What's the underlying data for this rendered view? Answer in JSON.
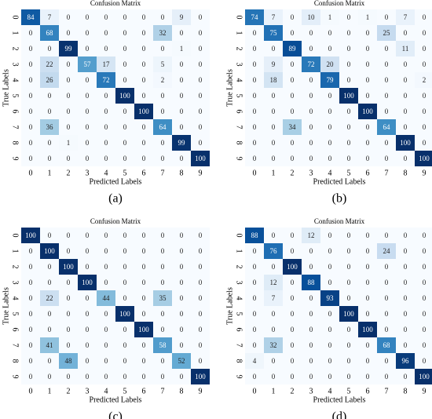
{
  "chart_data": [
    {
      "type": "heatmap",
      "title": "Confusion Matrix",
      "x_label": "Predicted Labels",
      "y_label": "True Labels",
      "caption": "(a)",
      "colormap": "Blues",
      "x_categories": [
        "0",
        "1",
        "2",
        "3",
        "4",
        "5",
        "6",
        "7",
        "8",
        "9"
      ],
      "y_categories": [
        "0",
        "1",
        "2",
        "3",
        "4",
        "5",
        "6",
        "7",
        "8",
        "9"
      ],
      "values": [
        [
          84,
          7,
          0,
          0,
          0,
          0,
          0,
          0,
          9,
          0
        ],
        [
          0,
          68,
          0,
          0,
          0,
          0,
          0,
          32,
          0,
          0
        ],
        [
          0,
          0,
          99,
          0,
          0,
          0,
          0,
          0,
          1,
          0
        ],
        [
          0,
          22,
          0,
          57,
          17,
          0,
          0,
          5,
          0,
          0
        ],
        [
          0,
          26,
          0,
          0,
          72,
          0,
          0,
          2,
          0,
          0
        ],
        [
          0,
          0,
          0,
          0,
          0,
          100,
          0,
          0,
          0,
          0
        ],
        [
          0,
          0,
          0,
          0,
          0,
          0,
          100,
          0,
          0,
          0
        ],
        [
          0,
          36,
          0,
          0,
          0,
          0,
          0,
          64,
          0,
          0
        ],
        [
          0,
          0,
          1,
          0,
          0,
          0,
          0,
          0,
          99,
          0
        ],
        [
          0,
          0,
          0,
          0,
          0,
          0,
          0,
          0,
          0,
          100
        ]
      ]
    },
    {
      "type": "heatmap",
      "title": "Confusion Matrix",
      "x_label": "Predicted Labels",
      "y_label": "True Labels",
      "caption": "(b)",
      "colormap": "Blues",
      "x_categories": [
        "0",
        "1",
        "2",
        "3",
        "4",
        "5",
        "6",
        "7",
        "8",
        "9"
      ],
      "y_categories": [
        "0",
        "1",
        "2",
        "3",
        "4",
        "5",
        "6",
        "7",
        "8",
        "9"
      ],
      "values": [
        [
          74,
          7,
          0,
          10,
          1,
          0,
          1,
          0,
          7,
          0
        ],
        [
          0,
          75,
          0,
          0,
          0,
          0,
          0,
          25,
          0,
          0
        ],
        [
          0,
          0,
          89,
          0,
          0,
          0,
          0,
          0,
          11,
          0
        ],
        [
          0,
          9,
          0,
          72,
          20,
          0,
          0,
          0,
          0,
          0
        ],
        [
          0,
          18,
          0,
          0,
          79,
          0,
          0,
          0,
          0,
          2
        ],
        [
          0,
          0,
          0,
          0,
          0,
          100,
          0,
          0,
          0,
          0
        ],
        [
          0,
          0,
          0,
          0,
          0,
          0,
          100,
          0,
          0,
          0
        ],
        [
          0,
          0,
          34,
          0,
          0,
          0,
          0,
          64,
          0,
          0
        ],
        [
          0,
          0,
          0,
          0,
          0,
          0,
          0,
          0,
          100,
          0
        ],
        [
          0,
          0,
          0,
          0,
          0,
          0,
          0,
          0,
          0,
          100
        ]
      ]
    },
    {
      "type": "heatmap",
      "title": "Confusion Matrix",
      "x_label": "Predicted Labels",
      "y_label": "True Labels",
      "caption": "(c)",
      "colormap": "Blues",
      "x_categories": [
        "0",
        "1",
        "2",
        "3",
        "4",
        "5",
        "6",
        "7",
        "8",
        "9"
      ],
      "y_categories": [
        "0",
        "1",
        "2",
        "3",
        "4",
        "5",
        "6",
        "7",
        "8",
        "9"
      ],
      "values": [
        [
          100,
          0,
          0,
          0,
          0,
          0,
          0,
          0,
          0,
          0
        ],
        [
          0,
          100,
          0,
          0,
          0,
          0,
          0,
          0,
          0,
          0
        ],
        [
          0,
          0,
          100,
          0,
          0,
          0,
          0,
          0,
          0,
          0
        ],
        [
          0,
          0,
          0,
          100,
          0,
          0,
          0,
          0,
          0,
          0
        ],
        [
          0,
          22,
          0,
          0,
          44,
          0,
          0,
          35,
          0,
          0
        ],
        [
          0,
          0,
          0,
          0,
          0,
          100,
          0,
          0,
          0,
          0
        ],
        [
          0,
          0,
          0,
          0,
          0,
          0,
          100,
          0,
          0,
          0
        ],
        [
          0,
          41,
          0,
          0,
          0,
          0,
          0,
          58,
          0,
          0
        ],
        [
          0,
          0,
          48,
          0,
          0,
          0,
          0,
          0,
          52,
          0
        ],
        [
          0,
          0,
          0,
          0,
          0,
          0,
          0,
          0,
          0,
          100
        ]
      ]
    },
    {
      "type": "heatmap",
      "title": "Confusion Matrix",
      "x_label": "Predicted Labels",
      "y_label": "True Labels",
      "caption": "(d)",
      "colormap": "Blues",
      "x_categories": [
        "0",
        "1",
        "2",
        "3",
        "4",
        "5",
        "6",
        "7",
        "8",
        "9"
      ],
      "y_categories": [
        "0",
        "1",
        "2",
        "3",
        "4",
        "5",
        "6",
        "7",
        "8",
        "9"
      ],
      "values": [
        [
          88,
          0,
          0,
          12,
          0,
          0,
          0,
          0,
          0,
          0
        ],
        [
          0,
          76,
          0,
          0,
          0,
          0,
          0,
          24,
          0,
          0
        ],
        [
          0,
          0,
          100,
          0,
          0,
          0,
          0,
          0,
          0,
          0
        ],
        [
          0,
          12,
          0,
          88,
          0,
          0,
          0,
          0,
          0,
          0
        ],
        [
          0,
          7,
          0,
          0,
          93,
          0,
          0,
          0,
          0,
          0
        ],
        [
          0,
          0,
          0,
          0,
          0,
          100,
          0,
          0,
          0,
          0
        ],
        [
          0,
          0,
          0,
          0,
          0,
          0,
          100,
          0,
          0,
          0
        ],
        [
          0,
          32,
          0,
          0,
          0,
          0,
          0,
          68,
          0,
          0
        ],
        [
          4,
          0,
          0,
          0,
          0,
          0,
          0,
          0,
          96,
          0
        ],
        [
          0,
          0,
          0,
          0,
          0,
          0,
          0,
          0,
          0,
          100
        ]
      ]
    }
  ]
}
